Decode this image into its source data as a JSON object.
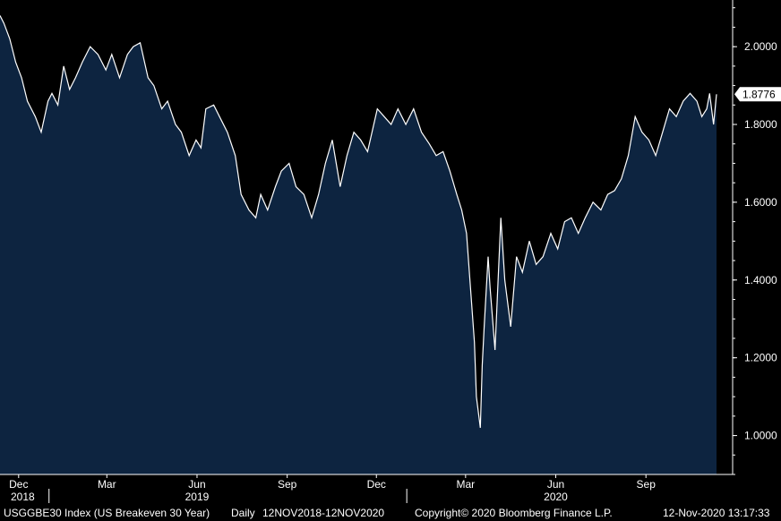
{
  "chart_data": {
    "type": "area",
    "ticker": "USGGBE30 Index (US Breakeven 30 Year)",
    "frequency": "Daily",
    "range": "12NOV2018-12NOV2020",
    "copyright": "Copyright© 2020 Bloomberg Finance L.P.",
    "timestamp": "12-Nov-2020 13:17:33",
    "last_value": "1.8776",
    "ylim": [
      0.9,
      2.12
    ],
    "y_ticks": [
      {
        "value": 1.0,
        "label": "1.0000"
      },
      {
        "value": 1.2,
        "label": "1.2000"
      },
      {
        "value": 1.4,
        "label": "1.4000"
      },
      {
        "value": 1.6,
        "label": "1.6000"
      },
      {
        "value": 1.8,
        "label": "1.8000"
      },
      {
        "value": 2.0,
        "label": "2.0000"
      }
    ],
    "x_range": [
      "2018-11-12",
      "2020-11-12"
    ],
    "month_ticks": [
      {
        "date": "2018-12-01",
        "label": "Dec"
      },
      {
        "date": "2019-03-01",
        "label": "Mar"
      },
      {
        "date": "2019-06-01",
        "label": "Jun"
      },
      {
        "date": "2019-09-01",
        "label": "Sep"
      },
      {
        "date": "2019-12-01",
        "label": "Dec"
      },
      {
        "date": "2020-03-01",
        "label": "Mar"
      },
      {
        "date": "2020-06-01",
        "label": "Jun"
      },
      {
        "date": "2020-09-01",
        "label": "Sep"
      }
    ],
    "year_ticks": [
      {
        "date": "2018-11-12",
        "label": "2018"
      },
      {
        "date": "2019-06-01",
        "label": "2019"
      },
      {
        "date": "2020-06-01",
        "label": "2020"
      }
    ],
    "year_separators": [
      "2019-01-01",
      "2020-01-01"
    ],
    "series": [
      {
        "x": [
          "2018-11-12",
          "2018-11-16",
          "2018-11-22",
          "2018-11-28",
          "2018-12-04",
          "2018-12-10",
          "2018-12-18",
          "2018-12-24",
          "2018-12-31",
          "2019-01-04",
          "2019-01-10",
          "2019-01-16",
          "2019-01-22",
          "2019-01-28",
          "2019-02-04",
          "2019-02-12",
          "2019-02-20",
          "2019-02-28",
          "2019-03-06",
          "2019-03-14",
          "2019-03-22",
          "2019-03-28",
          "2019-04-04",
          "2019-04-12",
          "2019-04-18",
          "2019-04-26",
          "2019-05-02",
          "2019-05-10",
          "2019-05-16",
          "2019-05-24",
          "2019-05-31",
          "2019-06-05",
          "2019-06-10",
          "2019-06-18",
          "2019-06-24",
          "2019-07-02",
          "2019-07-10",
          "2019-07-16",
          "2019-07-24",
          "2019-07-31",
          "2019-08-05",
          "2019-08-12",
          "2019-08-20",
          "2019-08-26",
          "2019-09-03",
          "2019-09-10",
          "2019-09-18",
          "2019-09-26",
          "2019-10-03",
          "2019-10-10",
          "2019-10-17",
          "2019-10-25",
          "2019-11-01",
          "2019-11-08",
          "2019-11-15",
          "2019-11-22",
          "2019-12-02",
          "2019-12-09",
          "2019-12-16",
          "2019-12-23",
          "2019-12-31",
          "2020-01-08",
          "2020-01-16",
          "2020-01-24",
          "2020-01-31",
          "2020-02-07",
          "2020-02-14",
          "2020-02-21",
          "2020-02-26",
          "2020-03-02",
          "2020-03-06",
          "2020-03-10",
          "2020-03-12",
          "2020-03-16",
          "2020-03-18",
          "2020-03-20",
          "2020-03-24",
          "2020-03-26",
          "2020-03-31",
          "2020-04-06",
          "2020-04-10",
          "2020-04-16",
          "2020-04-22",
          "2020-04-28",
          "2020-05-05",
          "2020-05-12",
          "2020-05-19",
          "2020-05-27",
          "2020-06-03",
          "2020-06-10",
          "2020-06-17",
          "2020-06-24",
          "2020-07-01",
          "2020-07-09",
          "2020-07-17",
          "2020-07-24",
          "2020-07-31",
          "2020-08-07",
          "2020-08-14",
          "2020-08-21",
          "2020-08-28",
          "2020-09-04",
          "2020-09-11",
          "2020-09-18",
          "2020-09-25",
          "2020-10-02",
          "2020-10-09",
          "2020-10-16",
          "2020-10-23",
          "2020-10-28",
          "2020-11-02",
          "2020-11-05",
          "2020-11-09",
          "2020-11-12"
        ],
        "values": [
          2.08,
          2.06,
          2.02,
          1.96,
          1.92,
          1.86,
          1.82,
          1.78,
          1.86,
          1.88,
          1.85,
          1.95,
          1.89,
          1.92,
          1.96,
          2.0,
          1.98,
          1.94,
          1.98,
          1.92,
          1.98,
          2.0,
          2.01,
          1.92,
          1.9,
          1.84,
          1.86,
          1.8,
          1.78,
          1.72,
          1.76,
          1.74,
          1.84,
          1.85,
          1.82,
          1.78,
          1.72,
          1.62,
          1.58,
          1.56,
          1.62,
          1.58,
          1.64,
          1.68,
          1.7,
          1.64,
          1.62,
          1.56,
          1.62,
          1.7,
          1.76,
          1.64,
          1.72,
          1.78,
          1.76,
          1.73,
          1.84,
          1.82,
          1.8,
          1.84,
          1.8,
          1.84,
          1.78,
          1.75,
          1.72,
          1.73,
          1.68,
          1.62,
          1.58,
          1.52,
          1.38,
          1.24,
          1.1,
          1.02,
          1.18,
          1.28,
          1.46,
          1.38,
          1.22,
          1.56,
          1.4,
          1.28,
          1.46,
          1.42,
          1.5,
          1.44,
          1.46,
          1.52,
          1.48,
          1.55,
          1.56,
          1.52,
          1.56,
          1.6,
          1.58,
          1.62,
          1.63,
          1.66,
          1.72,
          1.82,
          1.78,
          1.76,
          1.72,
          1.78,
          1.84,
          1.82,
          1.86,
          1.88,
          1.86,
          1.82,
          1.84,
          1.88,
          1.8,
          1.8776
        ]
      }
    ]
  }
}
